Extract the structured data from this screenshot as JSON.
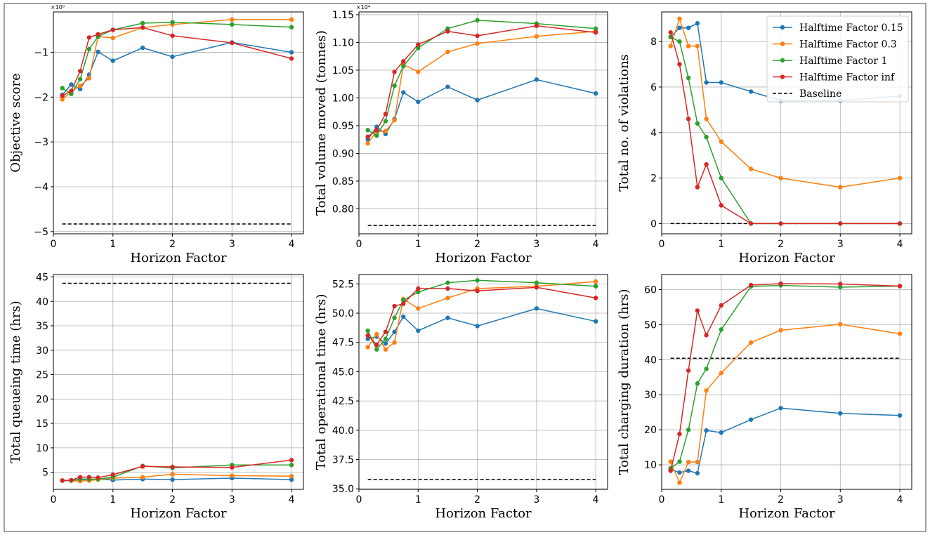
{
  "figure": {
    "legend_placement": "top-right of top-right panel",
    "grid": true
  },
  "legend": [
    {
      "label": "Halftime Factor 0.15",
      "color": "#1f77b4",
      "style": "solid-marker"
    },
    {
      "label": "Halftime Factor 0.3",
      "color": "#ff7f0e",
      "style": "solid-marker"
    },
    {
      "label": "Halftime Factor 1",
      "color": "#2ca02c",
      "style": "solid-marker"
    },
    {
      "label": "Halftime Factor inf",
      "color": "#d62728",
      "style": "solid-marker"
    },
    {
      "label": "Baseline",
      "color": "#000000",
      "style": "dashed"
    }
  ],
  "chart_data": [
    {
      "type": "line",
      "xlabel": "Horizon Factor",
      "ylabel": "Objective score",
      "offset_text": "×10⁶",
      "xlim": [
        0,
        4.2
      ],
      "ylim": [
        -5.05,
        -0.1
      ],
      "xticks": [
        0,
        1,
        2,
        3,
        4
      ],
      "yticks": [
        -5,
        -4,
        -3,
        -2,
        -1
      ],
      "ytick_labels": [
        "−5",
        "−4",
        "−3",
        "−2",
        "−1"
      ],
      "x": [
        0.15,
        0.3,
        0.45,
        0.6,
        0.75,
        1,
        1.5,
        2,
        3,
        4
      ],
      "series": [
        {
          "name": "Halftime Factor 0.15",
          "color": "#1f77b4",
          "values": [
            -1.95,
            -1.72,
            -1.82,
            -1.5,
            -0.99,
            -1.19,
            -0.9,
            -1.1,
            -0.78,
            -1.0
          ]
        },
        {
          "name": "Halftime Factor 0.3",
          "color": "#ff7f0e",
          "values": [
            -2.05,
            -1.88,
            -1.75,
            -1.58,
            -0.65,
            -0.68,
            -0.45,
            -0.38,
            -0.27,
            -0.27
          ]
        },
        {
          "name": "Halftime Factor 1",
          "color": "#2ca02c",
          "values": [
            -1.8,
            -1.93,
            -1.6,
            -0.93,
            -0.65,
            -0.5,
            -0.35,
            -0.33,
            -0.38,
            -0.44
          ]
        },
        {
          "name": "Halftime Factor inf",
          "color": "#d62728",
          "values": [
            -1.97,
            -1.86,
            -1.42,
            -0.67,
            -0.6,
            -0.5,
            -0.45,
            -0.63,
            -0.79,
            -1.14
          ]
        }
      ],
      "baseline": {
        "name": "Baseline",
        "value": -4.83,
        "x_range": [
          0.15,
          4
        ]
      }
    },
    {
      "type": "line",
      "xlabel": "Horizon Factor",
      "ylabel": "Total volume moved (tonnes)",
      "offset_text": "×10⁴",
      "xlim": [
        0,
        4.2
      ],
      "ylim": [
        0.755,
        1.155
      ],
      "xticks": [
        0,
        1,
        2,
        3,
        4
      ],
      "yticks": [
        0.8,
        0.85,
        0.9,
        0.95,
        1.0,
        1.05,
        1.1,
        1.15
      ],
      "ytick_labels": [
        "0.80",
        "0.85",
        "0.90",
        "0.95",
        "1.00",
        "1.05",
        "1.10",
        "1.15"
      ],
      "x": [
        0.15,
        0.3,
        0.45,
        0.6,
        0.75,
        1,
        1.5,
        2,
        3,
        4
      ],
      "series": [
        {
          "name": "Halftime Factor 0.15",
          "color": "#1f77b4",
          "values": [
            0.925,
            0.948,
            0.935,
            0.962,
            1.01,
            0.993,
            1.02,
            0.996,
            1.033,
            1.008
          ]
        },
        {
          "name": "Halftime Factor 0.3",
          "color": "#ff7f0e",
          "values": [
            0.918,
            0.94,
            0.94,
            0.96,
            1.06,
            1.047,
            1.083,
            1.098,
            1.111,
            1.12
          ]
        },
        {
          "name": "Halftime Factor 1",
          "color": "#2ca02c",
          "values": [
            0.942,
            0.932,
            0.958,
            1.022,
            1.057,
            1.09,
            1.125,
            1.14,
            1.134,
            1.125
          ]
        },
        {
          "name": "Halftime Factor inf",
          "color": "#d62728",
          "values": [
            0.93,
            0.942,
            0.971,
            1.047,
            1.066,
            1.096,
            1.12,
            1.112,
            1.13,
            1.118
          ]
        }
      ],
      "baseline": {
        "name": "Baseline",
        "value": 0.77,
        "x_range": [
          0.15,
          4
        ]
      }
    },
    {
      "type": "line",
      "xlabel": "Horizon Factor",
      "ylabel": "Total no. of violations",
      "xlim": [
        0,
        4.2
      ],
      "ylim": [
        -0.45,
        9.3
      ],
      "xticks": [
        0,
        1,
        2,
        3,
        4
      ],
      "yticks": [
        0,
        2,
        4,
        6,
        8
      ],
      "ytick_labels": [
        "0",
        "2",
        "4",
        "6",
        "8"
      ],
      "x": [
        0.15,
        0.3,
        0.45,
        0.6,
        0.75,
        1,
        1.5,
        2,
        3,
        4
      ],
      "series": [
        {
          "name": "Halftime Factor 0.15",
          "color": "#1f77b4",
          "values": [
            8.2,
            8.6,
            8.6,
            8.8,
            6.2,
            6.2,
            5.8,
            5.4,
            5.4,
            5.6
          ]
        },
        {
          "name": "Halftime Factor 0.3",
          "color": "#ff7f0e",
          "values": [
            7.8,
            9.0,
            7.8,
            7.8,
            4.6,
            3.6,
            2.4,
            2.0,
            1.6,
            2.0
          ]
        },
        {
          "name": "Halftime Factor 1",
          "color": "#2ca02c",
          "values": [
            8.2,
            8.0,
            6.4,
            4.4,
            3.8,
            2.0,
            0.0,
            0.0,
            0.0,
            0.0
          ]
        },
        {
          "name": "Halftime Factor inf",
          "color": "#d62728",
          "values": [
            8.4,
            7.0,
            4.6,
            1.6,
            2.6,
            0.8,
            0.0,
            0.0,
            0.0,
            0.0
          ]
        }
      ],
      "baseline": {
        "name": "Baseline",
        "value": 0,
        "x_range": [
          0.15,
          4
        ]
      },
      "legend": true
    },
    {
      "type": "line",
      "xlabel": "Horizon Factor",
      "ylabel": "Total queueing time (hrs)",
      "xlim": [
        0,
        4.2
      ],
      "ylim": [
        1.5,
        45.5
      ],
      "xticks": [
        0,
        1,
        2,
        3,
        4
      ],
      "yticks": [
        5,
        10,
        15,
        20,
        25,
        30,
        35,
        40,
        45
      ],
      "ytick_labels": [
        "5",
        "10",
        "15",
        "20",
        "25",
        "30",
        "35",
        "40",
        "45"
      ],
      "x": [
        0.15,
        0.3,
        0.45,
        0.6,
        0.75,
        1,
        1.5,
        2,
        3,
        4
      ],
      "series": [
        {
          "name": "Halftime Factor 0.15",
          "color": "#1f77b4",
          "values": [
            3.3,
            3.3,
            3.5,
            3.5,
            3.6,
            3.4,
            3.6,
            3.5,
            3.8,
            3.5
          ]
        },
        {
          "name": "Halftime Factor 0.3",
          "color": "#ff7f0e",
          "values": [
            3.3,
            3.3,
            3.2,
            3.3,
            3.5,
            3.8,
            4.0,
            4.6,
            4.3,
            4.2
          ]
        },
        {
          "name": "Halftime Factor 1",
          "color": "#2ca02c",
          "values": [
            3.3,
            3.3,
            3.6,
            3.6,
            3.6,
            4.0,
            6.3,
            5.9,
            6.5,
            6.5
          ]
        },
        {
          "name": "Halftime Factor inf",
          "color": "#d62728",
          "values": [
            3.3,
            3.4,
            4.0,
            4.0,
            3.9,
            4.5,
            6.2,
            6.1,
            6.0,
            7.5
          ]
        }
      ],
      "baseline": {
        "name": "Baseline",
        "value": 43.7,
        "x_range": [
          0.15,
          4
        ]
      }
    },
    {
      "type": "line",
      "xlabel": "Horizon Factor",
      "ylabel": "Total operational time (hrs)",
      "xlim": [
        0,
        4.2
      ],
      "ylim": [
        34.95,
        53.3
      ],
      "xticks": [
        0,
        1,
        2,
        3,
        4
      ],
      "yticks": [
        35.0,
        37.5,
        40.0,
        42.5,
        45.0,
        47.5,
        50.0,
        52.5
      ],
      "ytick_labels": [
        "35.0",
        "37.5",
        "40.0",
        "42.5",
        "45.0",
        "47.5",
        "50.0",
        "52.5"
      ],
      "x": [
        0.15,
        0.3,
        0.45,
        0.6,
        0.75,
        1,
        1.5,
        2,
        3,
        4
      ],
      "series": [
        {
          "name": "Halftime Factor 0.15",
          "color": "#1f77b4",
          "values": [
            47.8,
            48.0,
            47.4,
            48.4,
            49.7,
            48.5,
            49.6,
            48.9,
            50.4,
            49.3
          ]
        },
        {
          "name": "Halftime Factor 0.3",
          "color": "#ff7f0e",
          "values": [
            47.1,
            48.2,
            46.9,
            47.5,
            51.2,
            50.4,
            51.3,
            52.1,
            52.3,
            52.7
          ]
        },
        {
          "name": "Halftime Factor 1",
          "color": "#2ca02c",
          "values": [
            48.5,
            46.9,
            47.8,
            49.6,
            51.1,
            51.8,
            52.6,
            52.8,
            52.6,
            52.3
          ]
        },
        {
          "name": "Halftime Factor inf",
          "color": "#d62728",
          "values": [
            48.1,
            47.3,
            48.4,
            50.6,
            50.8,
            52.1,
            52.1,
            51.9,
            52.2,
            51.3
          ]
        }
      ],
      "baseline": {
        "name": "Baseline",
        "value": 35.8,
        "x_range": [
          0.15,
          4
        ]
      }
    },
    {
      "type": "line",
      "xlabel": "Horizon Factor",
      "ylabel": "Total charging duration (hrs)",
      "xlim": [
        0,
        4.2
      ],
      "ylim": [
        3.0,
        64.3
      ],
      "xticks": [
        0,
        1,
        2,
        3,
        4
      ],
      "yticks": [
        10,
        20,
        30,
        40,
        50,
        60
      ],
      "ytick_labels": [
        "10",
        "20",
        "30",
        "40",
        "50",
        "60"
      ],
      "x": [
        0.15,
        0.3,
        0.45,
        0.6,
        0.75,
        1,
        1.5,
        2,
        3,
        4
      ],
      "series": [
        {
          "name": "Halftime Factor 0.15",
          "color": "#1f77b4",
          "values": [
            8.7,
            7.8,
            8.3,
            7.6,
            19.8,
            19.2,
            22.9,
            26.2,
            24.7,
            24.1
          ]
        },
        {
          "name": "Halftime Factor 0.3",
          "color": "#ff7f0e",
          "values": [
            10.9,
            4.9,
            10.8,
            10.8,
            31.2,
            36.2,
            44.9,
            48.4,
            50.1,
            47.4
          ]
        },
        {
          "name": "Halftime Factor 1",
          "color": "#2ca02c",
          "values": [
            9.0,
            10.9,
            20.0,
            33.2,
            37.4,
            48.6,
            60.9,
            61.2,
            60.7,
            61.0
          ]
        },
        {
          "name": "Halftime Factor inf",
          "color": "#d62728",
          "values": [
            8.3,
            18.8,
            36.9,
            54.0,
            47.0,
            55.5,
            61.3,
            61.7,
            61.6,
            61.0
          ]
        }
      ],
      "baseline": {
        "name": "Baseline",
        "value": 40.4,
        "x_range": [
          0.15,
          4
        ]
      }
    }
  ]
}
